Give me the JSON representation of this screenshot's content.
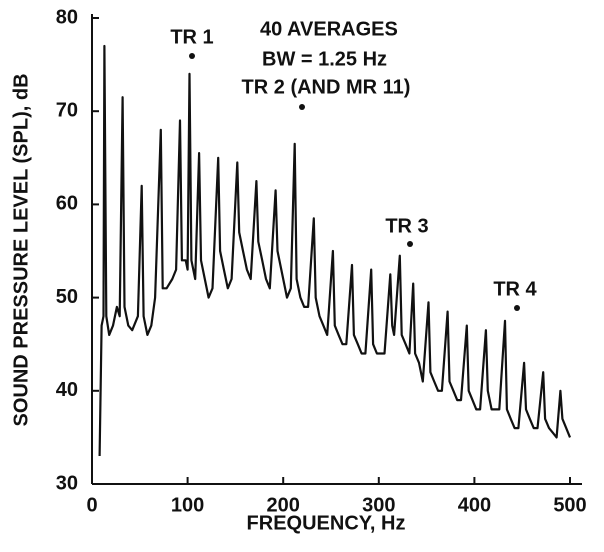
{
  "chart_data": {
    "type": "line",
    "xlabel": "FREQUENCY, Hz",
    "ylabel": "SOUND PRESSURE LEVEL (SPL), dB",
    "annotations": [
      "40 AVERAGES",
      "BW = 1.25 Hz",
      "TR 1",
      "TR 2 (AND MR 11)",
      "TR 3",
      "TR 4"
    ],
    "color": "#111111",
    "x": [
      8,
      10,
      12,
      13,
      15,
      18,
      22,
      26,
      29,
      32,
      34,
      38,
      42,
      48,
      52,
      54,
      58,
      62,
      66,
      72,
      74,
      78,
      84,
      88,
      92,
      94,
      98,
      100,
      102,
      104,
      108,
      112,
      114,
      118,
      122,
      126,
      132,
      134,
      138,
      142,
      146,
      152,
      154,
      158,
      162,
      166,
      172,
      174,
      178,
      182,
      186,
      192,
      194,
      198,
      204,
      208,
      212,
      214,
      218,
      222,
      226,
      232,
      234,
      238,
      242,
      246,
      252,
      254,
      258,
      262,
      266,
      272,
      274,
      278,
      282,
      286,
      292,
      294,
      298,
      302,
      306,
      312,
      314,
      316,
      322,
      324,
      328,
      332,
      336,
      338,
      342,
      346,
      352,
      354,
      358,
      362,
      366,
      372,
      374,
      378,
      382,
      386,
      392,
      394,
      398,
      402,
      406,
      412,
      414,
      418,
      422,
      426,
      432,
      434,
      438,
      442,
      446,
      452,
      454,
      458,
      462,
      466,
      472,
      474,
      478,
      482,
      486,
      490,
      492,
      496,
      500
    ],
    "values": [
      33,
      47,
      48,
      77,
      48,
      46,
      47,
      49,
      48,
      71.5,
      49,
      47,
      46.5,
      48,
      62,
      48,
      46,
      47,
      50,
      68,
      51,
      51,
      52,
      53,
      69,
      54,
      54,
      53,
      74,
      54,
      52,
      65.5,
      54,
      52,
      50,
      51,
      65,
      55,
      53,
      51,
      52,
      64.5,
      57,
      55,
      53,
      52,
      62.5,
      56,
      54,
      52,
      51,
      61.5,
      55,
      53,
      50,
      51,
      66.5,
      52,
      50,
      49,
      49,
      58.5,
      50,
      48,
      47,
      46,
      55,
      47,
      46,
      45,
      45,
      53.5,
      46,
      45,
      44,
      44,
      53,
      45,
      44,
      44,
      44,
      52.5,
      47,
      46,
      54.5,
      46,
      45,
      44,
      51.5,
      44,
      43,
      41,
      49.5,
      42,
      41,
      40,
      40,
      48.5,
      41,
      40,
      39,
      39,
      47,
      40,
      39,
      38,
      38,
      46.5,
      40,
      38,
      38,
      38,
      47.5,
      38,
      37,
      36,
      36,
      43,
      38,
      37,
      36,
      36,
      42,
      37,
      36,
      35.5,
      35,
      40,
      37,
      36,
      35
    ],
    "xlim": [
      0,
      500
    ],
    "xticks": [
      0,
      100,
      200,
      300,
      400,
      500
    ],
    "ylim": [
      30,
      80
    ],
    "yticks": [
      30,
      40,
      50,
      60,
      70,
      80
    ],
    "grid": false
  }
}
